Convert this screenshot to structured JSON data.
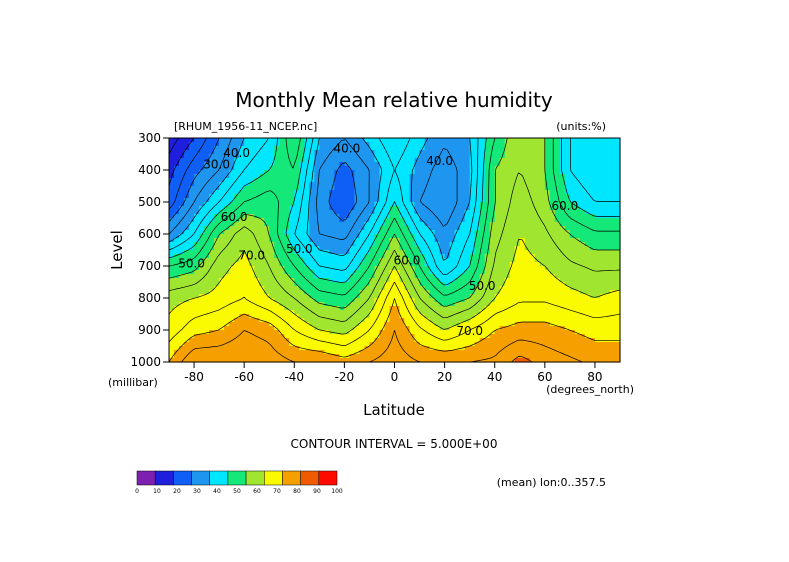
{
  "chart_data": {
    "type": "heatmap",
    "title": "Monthly Mean relative humidity",
    "dataset_label": "[RHUM_1956-11_NCEP.nc]",
    "units_label": "(units:%)",
    "xlabel": "Latitude",
    "ylabel": "Level",
    "x_units": "(degrees_north)",
    "y_units": "(millibar)",
    "x_range": [
      -90,
      90
    ],
    "y_range": [
      300,
      1000
    ],
    "x_ticks": [
      -80,
      -60,
      -40,
      -20,
      0,
      20,
      40,
      60,
      80
    ],
    "x_tick_labels": [
      "-80",
      "-60",
      "-40",
      "-20",
      "0",
      "20",
      "40",
      "60",
      "80"
    ],
    "y_ticks": [
      300,
      400,
      500,
      600,
      700,
      800,
      900,
      1000
    ],
    "y_tick_labels": [
      "300",
      "400",
      "500",
      "600",
      "700",
      "800",
      "900",
      "1000"
    ],
    "contour_interval_text": "CONTOUR INTERVAL = 5.000E+00",
    "mean_text": "(mean) lon:0..357.5",
    "lat": [
      -90,
      -80,
      -70,
      -60,
      -50,
      -40,
      -30,
      -20,
      -10,
      0,
      10,
      20,
      30,
      40,
      50,
      60,
      70,
      80,
      90
    ],
    "levels": [
      300,
      400,
      500,
      600,
      700,
      800,
      900,
      1000
    ],
    "rh": [
      [
        12,
        20,
        30,
        40,
        45,
        60,
        40,
        35,
        42,
        50,
        42,
        36,
        40,
        55,
        65,
        60,
        45,
        40,
        42
      ],
      [
        18,
        28,
        35,
        45,
        50,
        55,
        35,
        28,
        35,
        45,
        38,
        32,
        38,
        60,
        65,
        60,
        45,
        40,
        40
      ],
      [
        22,
        35,
        45,
        55,
        58,
        50,
        33,
        25,
        35,
        50,
        35,
        30,
        40,
        60,
        68,
        62,
        50,
        45,
        45
      ],
      [
        35,
        45,
        60,
        68,
        60,
        45,
        35,
        33,
        45,
        60,
        45,
        36,
        45,
        63,
        70,
        66,
        60,
        56,
        56
      ],
      [
        55,
        58,
        68,
        72,
        65,
        55,
        45,
        43,
        55,
        70,
        55,
        40,
        50,
        66,
        72,
        70,
        66,
        64,
        64
      ],
      [
        68,
        70,
        72,
        75,
        70,
        65,
        58,
        56,
        65,
        80,
        65,
        56,
        60,
        70,
        74,
        74,
        72,
        70,
        72
      ],
      [
        72,
        78,
        80,
        85,
        83,
        75,
        70,
        68,
        75,
        85,
        76,
        70,
        75,
        80,
        82,
        82,
        80,
        78,
        78
      ],
      [
        80,
        90,
        90,
        90,
        88,
        85,
        85,
        82,
        85,
        88,
        85,
        85,
        85,
        86,
        92,
        88,
        86,
        84,
        84
      ]
    ],
    "contour_labels": [
      {
        "text": "30.0",
        "lat": -71,
        "level": 395
      },
      {
        "text": "40.0",
        "lat": -63,
        "level": 360
      },
      {
        "text": "60.0",
        "lat": -64,
        "level": 560
      },
      {
        "text": "50.0",
        "lat": -81,
        "level": 705
      },
      {
        "text": "70.0",
        "lat": -57,
        "level": 680
      },
      {
        "text": "40.0",
        "lat": -19,
        "level": 345
      },
      {
        "text": "50.0",
        "lat": -38,
        "level": 660
      },
      {
        "text": "40.0",
        "lat": 18,
        "level": 385
      },
      {
        "text": "60.0",
        "lat": 5,
        "level": 695
      },
      {
        "text": "50.0",
        "lat": 35,
        "level": 775
      },
      {
        "text": "70.0",
        "lat": 30,
        "level": 915
      },
      {
        "text": "60.0",
        "lat": 68,
        "level": 525
      }
    ],
    "color_levels": [
      0,
      10,
      20,
      30,
      40,
      50,
      60,
      70,
      80,
      90,
      100
    ],
    "colorbar_labels": [
      "0",
      "10",
      "20",
      "30",
      "40",
      "50",
      "60",
      "70",
      "80",
      "90",
      "100"
    ],
    "colors": [
      "#7d1fb0",
      "#1e1edc",
      "#0f5ef5",
      "#1e96f0",
      "#00e6ff",
      "#14e878",
      "#a0e630",
      "#fafa00",
      "#f5a000",
      "#f05a00",
      "#ff0a00"
    ]
  }
}
